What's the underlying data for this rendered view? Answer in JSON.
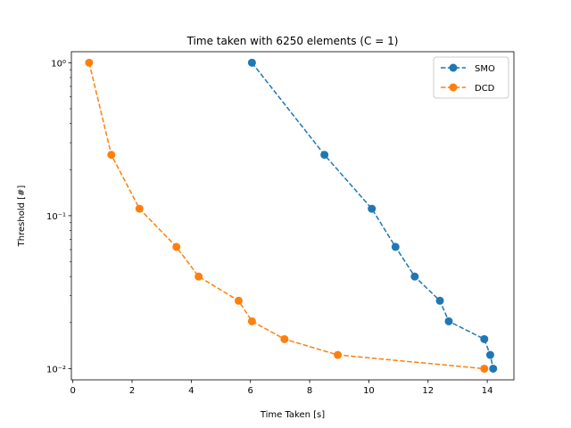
{
  "chart_data": {
    "type": "line",
    "title": "Time taken with 6250 elements (C = 1)",
    "xlabel": "Time Taken [s]",
    "ylabel": "Threshold [#]",
    "xlim": [
      -0.05,
      14.9
    ],
    "ylim": [
      0.00845,
      1.18
    ],
    "yscale": "log",
    "x_ticks": [
      0,
      2,
      4,
      6,
      8,
      10,
      12,
      14
    ],
    "x_tick_labels": [
      "0",
      "2",
      "4",
      "6",
      "8",
      "10",
      "12",
      "14"
    ],
    "y_ticks": [
      0.01,
      0.1,
      1
    ],
    "y_tick_labels": [
      "10⁻²",
      "10⁻¹",
      "10⁰"
    ],
    "grid": false,
    "legend_position": "top-right",
    "series": [
      {
        "name": "SMO",
        "color": "#1f77b4",
        "line_style": "dashed",
        "marker": "circle",
        "x": [
          6.05,
          8.5,
          10.1,
          10.9,
          11.55,
          12.4,
          12.7,
          13.9,
          14.1,
          14.2
        ],
        "y": [
          1.0,
          0.25,
          0.111,
          0.0625,
          0.04,
          0.0278,
          0.0204,
          0.0156,
          0.0123,
          0.01
        ]
      },
      {
        "name": "DCD",
        "color": "#ff7f0e",
        "line_style": "dashed",
        "marker": "circle",
        "x": [
          0.55,
          1.3,
          2.25,
          3.5,
          4.25,
          5.6,
          6.05,
          7.15,
          8.95,
          13.9
        ],
        "y": [
          1.0,
          0.25,
          0.111,
          0.0625,
          0.04,
          0.0278,
          0.0204,
          0.0156,
          0.0123,
          0.01
        ]
      }
    ]
  }
}
